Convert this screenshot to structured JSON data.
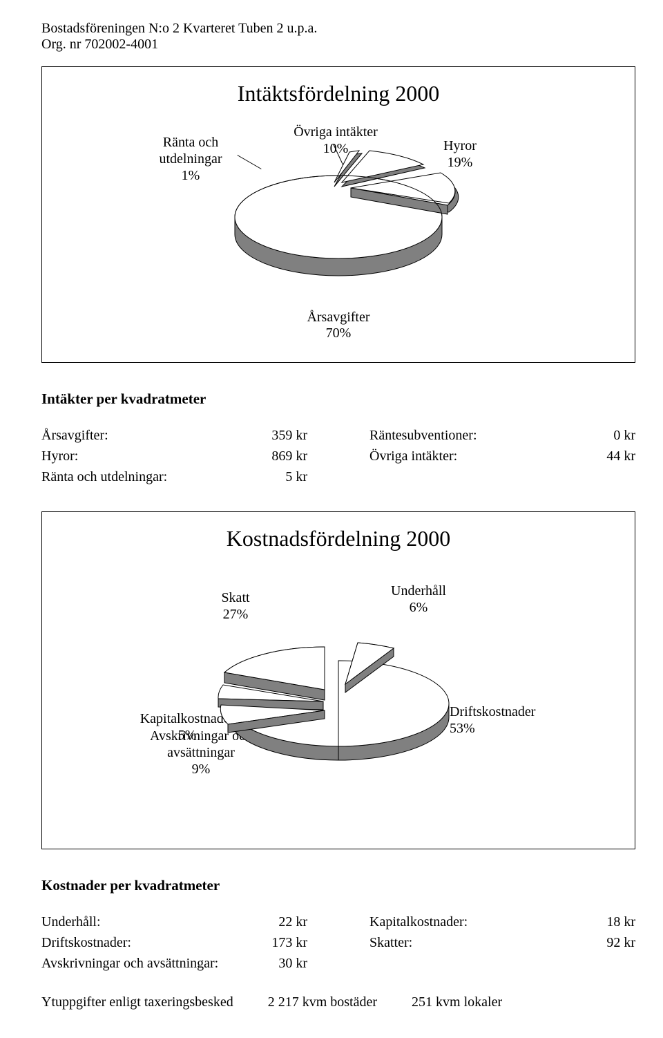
{
  "header": {
    "line1": "Bostadsföreningen N:o 2 Kvarteret Tuben 2 u.p.a.",
    "line2": "Org. nr 702002-4001"
  },
  "chart1": {
    "title": "Intäktsfördelning 2000",
    "type": "pie",
    "labels": {
      "ranta": "Ränta och\nutdelningar\n1%",
      "ovriga": "Övriga intäkter\n10%",
      "hyror": "Hyror\n19%",
      "arsavg": "Årsavgifter\n70%"
    },
    "slices": [
      {
        "name": "arsavg",
        "pct": 70,
        "exploded": false
      },
      {
        "name": "hyror",
        "pct": 19,
        "exploded": true
      },
      {
        "name": "ovriga",
        "pct": 10,
        "exploded": true
      },
      {
        "name": "ranta",
        "pct": 1,
        "exploded": true
      }
    ],
    "colors": {
      "fill": "#ffffff",
      "side": "#808080",
      "stroke": "#000000"
    }
  },
  "section1": {
    "heading": "Intäkter per kvadratmeter",
    "left": [
      {
        "label": "Årsavgifter:",
        "value": "359 kr"
      },
      {
        "label": "Hyror:",
        "value": "869 kr"
      },
      {
        "label": "Ränta och utdelningar:",
        "value": "5 kr"
      }
    ],
    "right": [
      {
        "label": "Räntesubventioner:",
        "value": "0 kr"
      },
      {
        "label": "Övriga intäkter:",
        "value": "44 kr"
      }
    ]
  },
  "chart2": {
    "title": "Kostnadsfördelning 2000",
    "type": "pie",
    "labels": {
      "skatt": "Skatt\n27%",
      "underhall": "Underhåll\n6%",
      "drift": "Driftskostnader\n53%",
      "kapital": "Kapitalkostnader\n5%",
      "avskriv": "Avskrivningar och\navsättningar\n9%"
    },
    "slices": [
      {
        "name": "drift",
        "pct": 53,
        "exploded": false
      },
      {
        "name": "underhall",
        "pct": 6,
        "exploded": true
      },
      {
        "name": "skatt",
        "pct": 27,
        "exploded": true
      },
      {
        "name": "kapital",
        "pct": 5,
        "exploded": true
      },
      {
        "name": "avskriv",
        "pct": 9,
        "exploded": true
      }
    ],
    "colors": {
      "fill": "#ffffff",
      "side": "#808080",
      "stroke": "#000000"
    }
  },
  "section2": {
    "heading": "Kostnader per kvadratmeter",
    "left": [
      {
        "label": "Underhåll:",
        "value": "22 kr"
      },
      {
        "label": "Driftskostnader:",
        "value": "173 kr"
      },
      {
        "label": "Avskrivningar och avsättningar:",
        "value": "30 kr"
      }
    ],
    "right": [
      {
        "label": "Kapitalkostnader:",
        "value": "18 kr"
      },
      {
        "label": "Skatter:",
        "value": "92 kr"
      }
    ]
  },
  "footer": {
    "label": "Ytuppgifter enligt taxeringsbesked",
    "val1": "2 217 kvm bostäder",
    "val2": "251 kvm lokaler"
  }
}
